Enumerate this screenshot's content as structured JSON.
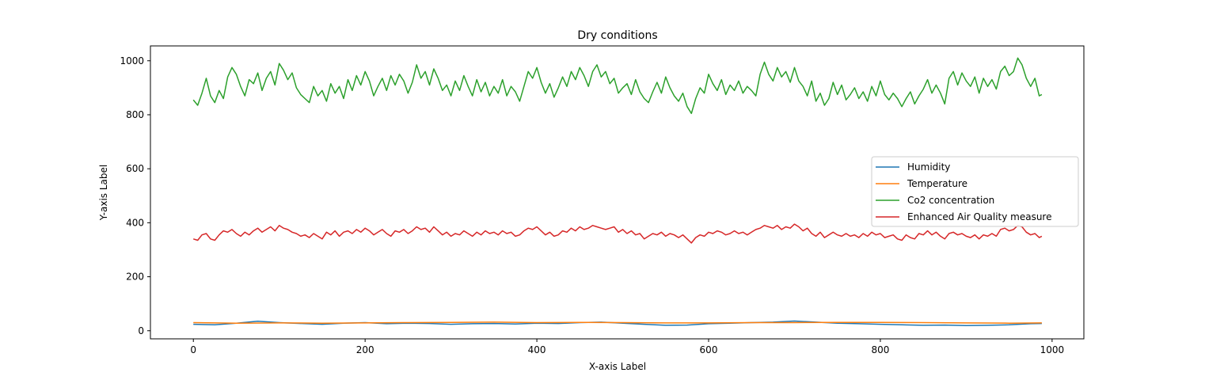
{
  "chart_data": {
    "type": "line",
    "title": "Dry conditions",
    "xlabel": "X-axis Label",
    "ylabel": "Y-axis Label",
    "xlim": [
      -50,
      1037
    ],
    "ylim": [
      -30,
      1055
    ],
    "xticks": [
      0,
      200,
      400,
      600,
      800,
      1000
    ],
    "yticks": [
      0,
      200,
      400,
      600,
      800,
      1000
    ],
    "grid": false,
    "legend_position": "center-right",
    "series": [
      {
        "name": "Humidity",
        "color": "#1f77b4",
        "x": [
          0,
          25,
          50,
          75,
          100,
          125,
          150,
          175,
          200,
          225,
          250,
          275,
          300,
          325,
          350,
          375,
          400,
          425,
          450,
          475,
          500,
          525,
          550,
          575,
          600,
          625,
          650,
          675,
          700,
          725,
          750,
          775,
          800,
          825,
          850,
          875,
          900,
          925,
          950,
          975,
          988
        ],
        "values": [
          24,
          22,
          28,
          35,
          30,
          27,
          24,
          28,
          30,
          26,
          28,
          27,
          24,
          26,
          27,
          25,
          28,
          27,
          30,
          32,
          28,
          24,
          20,
          21,
          26,
          28,
          30,
          32,
          36,
          32,
          28,
          26,
          24,
          22,
          20,
          21,
          19,
          20,
          22,
          26,
          27
        ]
      },
      {
        "name": "Temperature",
        "color": "#ff7f0e",
        "x": [
          0,
          50,
          100,
          150,
          200,
          250,
          300,
          350,
          400,
          450,
          500,
          550,
          600,
          650,
          700,
          750,
          800,
          850,
          900,
          950,
          988
        ],
        "values": [
          30,
          28,
          29,
          28,
          29,
          30,
          31,
          32,
          30,
          31,
          30,
          29,
          29,
          30,
          30,
          31,
          31,
          30,
          29,
          28,
          29
        ]
      },
      {
        "name": "Co2 concentration",
        "color": "#2ca02c",
        "x": [
          0,
          5,
          10,
          15,
          20,
          25,
          30,
          35,
          40,
          45,
          50,
          55,
          60,
          65,
          70,
          75,
          80,
          85,
          90,
          95,
          100,
          105,
          110,
          115,
          120,
          125,
          130,
          135,
          140,
          145,
          150,
          155,
          160,
          165,
          170,
          175,
          180,
          185,
          190,
          195,
          200,
          205,
          210,
          215,
          220,
          225,
          230,
          235,
          240,
          245,
          250,
          255,
          260,
          265,
          270,
          275,
          280,
          285,
          290,
          295,
          300,
          305,
          310,
          315,
          320,
          325,
          330,
          335,
          340,
          345,
          350,
          355,
          360,
          365,
          370,
          375,
          380,
          385,
          390,
          395,
          400,
          405,
          410,
          415,
          420,
          425,
          430,
          435,
          440,
          445,
          450,
          455,
          460,
          465,
          470,
          475,
          480,
          485,
          490,
          495,
          500,
          505,
          510,
          515,
          520,
          525,
          530,
          535,
          540,
          545,
          550,
          555,
          560,
          565,
          570,
          575,
          580,
          585,
          590,
          595,
          600,
          605,
          610,
          615,
          620,
          625,
          630,
          635,
          640,
          645,
          650,
          655,
          660,
          665,
          670,
          675,
          680,
          685,
          690,
          695,
          700,
          705,
          710,
          715,
          720,
          725,
          730,
          735,
          740,
          745,
          750,
          755,
          760,
          765,
          770,
          775,
          780,
          785,
          790,
          795,
          800,
          805,
          810,
          815,
          820,
          825,
          830,
          835,
          840,
          845,
          850,
          855,
          860,
          865,
          870,
          875,
          880,
          885,
          890,
          895,
          900,
          905,
          910,
          915,
          920,
          925,
          930,
          935,
          940,
          945,
          950,
          955,
          960,
          965,
          970,
          975,
          980,
          985,
          988
        ],
        "values": [
          855,
          835,
          880,
          935,
          870,
          845,
          890,
          860,
          940,
          975,
          950,
          905,
          870,
          930,
          915,
          955,
          890,
          935,
          960,
          910,
          990,
          965,
          930,
          955,
          900,
          875,
          860,
          845,
          905,
          870,
          890,
          850,
          915,
          880,
          905,
          860,
          930,
          890,
          945,
          910,
          960,
          925,
          870,
          905,
          935,
          890,
          945,
          910,
          950,
          925,
          880,
          920,
          985,
          935,
          960,
          910,
          970,
          935,
          890,
          910,
          870,
          925,
          890,
          945,
          905,
          870,
          930,
          885,
          920,
          870,
          905,
          880,
          930,
          870,
          905,
          885,
          850,
          905,
          960,
          935,
          975,
          920,
          880,
          915,
          865,
          900,
          940,
          905,
          960,
          930,
          975,
          945,
          905,
          960,
          985,
          940,
          960,
          915,
          935,
          880,
          900,
          915,
          875,
          930,
          885,
          860,
          845,
          885,
          920,
          880,
          940,
          900,
          870,
          850,
          880,
          830,
          805,
          860,
          900,
          880,
          950,
          915,
          890,
          930,
          875,
          910,
          890,
          925,
          880,
          905,
          890,
          870,
          950,
          995,
          950,
          925,
          975,
          940,
          960,
          920,
          975,
          925,
          905,
          870,
          925,
          850,
          880,
          835,
          860,
          920,
          875,
          910,
          855,
          875,
          900,
          860,
          885,
          850,
          905,
          870,
          925,
          875,
          855,
          880,
          860,
          830,
          860,
          885,
          840,
          870,
          895,
          930,
          880,
          910,
          880,
          840,
          935,
          960,
          910,
          955,
          925,
          905,
          940,
          880,
          935,
          905,
          930,
          895,
          960,
          980,
          945,
          960,
          1010,
          985,
          935,
          905,
          935,
          870,
          875
        ]
      },
      {
        "name": "Enhanced Air Quality measure",
        "color": "#d62728",
        "x": [
          0,
          5,
          10,
          15,
          20,
          25,
          30,
          35,
          40,
          45,
          50,
          55,
          60,
          65,
          70,
          75,
          80,
          85,
          90,
          95,
          100,
          105,
          110,
          115,
          120,
          125,
          130,
          135,
          140,
          145,
          150,
          155,
          160,
          165,
          170,
          175,
          180,
          185,
          190,
          195,
          200,
          205,
          210,
          215,
          220,
          225,
          230,
          235,
          240,
          245,
          250,
          255,
          260,
          265,
          270,
          275,
          280,
          285,
          290,
          295,
          300,
          305,
          310,
          315,
          320,
          325,
          330,
          335,
          340,
          345,
          350,
          355,
          360,
          365,
          370,
          375,
          380,
          385,
          390,
          395,
          400,
          405,
          410,
          415,
          420,
          425,
          430,
          435,
          440,
          445,
          450,
          455,
          460,
          465,
          470,
          475,
          480,
          485,
          490,
          495,
          500,
          505,
          510,
          515,
          520,
          525,
          530,
          535,
          540,
          545,
          550,
          555,
          560,
          565,
          570,
          575,
          580,
          585,
          590,
          595,
          600,
          605,
          610,
          615,
          620,
          625,
          630,
          635,
          640,
          645,
          650,
          655,
          660,
          665,
          670,
          675,
          680,
          685,
          690,
          695,
          700,
          705,
          710,
          715,
          720,
          725,
          730,
          735,
          740,
          745,
          750,
          755,
          760,
          765,
          770,
          775,
          780,
          785,
          790,
          795,
          800,
          805,
          810,
          815,
          820,
          825,
          830,
          835,
          840,
          845,
          850,
          855,
          860,
          865,
          870,
          875,
          880,
          885,
          890,
          895,
          900,
          905,
          910,
          915,
          920,
          925,
          930,
          935,
          940,
          945,
          950,
          955,
          960,
          965,
          970,
          975,
          980,
          985,
          988
        ],
        "values": [
          340,
          335,
          355,
          360,
          340,
          335,
          355,
          370,
          365,
          375,
          360,
          350,
          365,
          355,
          370,
          380,
          365,
          375,
          385,
          370,
          390,
          380,
          375,
          365,
          360,
          350,
          355,
          345,
          360,
          350,
          340,
          365,
          355,
          370,
          350,
          365,
          370,
          360,
          375,
          365,
          380,
          370,
          355,
          365,
          375,
          360,
          350,
          370,
          365,
          375,
          360,
          370,
          385,
          375,
          380,
          365,
          385,
          370,
          355,
          365,
          350,
          360,
          355,
          370,
          360,
          350,
          365,
          355,
          370,
          360,
          365,
          355,
          370,
          360,
          365,
          350,
          355,
          370,
          380,
          375,
          385,
          370,
          355,
          365,
          350,
          355,
          370,
          365,
          380,
          370,
          385,
          375,
          380,
          390,
          385,
          380,
          375,
          380,
          385,
          365,
          375,
          360,
          370,
          355,
          360,
          340,
          350,
          360,
          355,
          365,
          350,
          360,
          355,
          345,
          355,
          340,
          325,
          345,
          355,
          350,
          365,
          360,
          370,
          365,
          355,
          360,
          370,
          360,
          365,
          355,
          365,
          375,
          380,
          390,
          385,
          380,
          390,
          375,
          385,
          380,
          395,
          385,
          370,
          380,
          360,
          350,
          365,
          345,
          355,
          365,
          355,
          350,
          360,
          350,
          355,
          345,
          360,
          350,
          365,
          355,
          360,
          345,
          350,
          355,
          340,
          335,
          355,
          345,
          340,
          360,
          355,
          370,
          355,
          365,
          350,
          340,
          360,
          365,
          355,
          360,
          350,
          345,
          355,
          340,
          355,
          350,
          360,
          350,
          375,
          380,
          370,
          375,
          390,
          385,
          365,
          355,
          360,
          345,
          350
        ]
      }
    ]
  }
}
